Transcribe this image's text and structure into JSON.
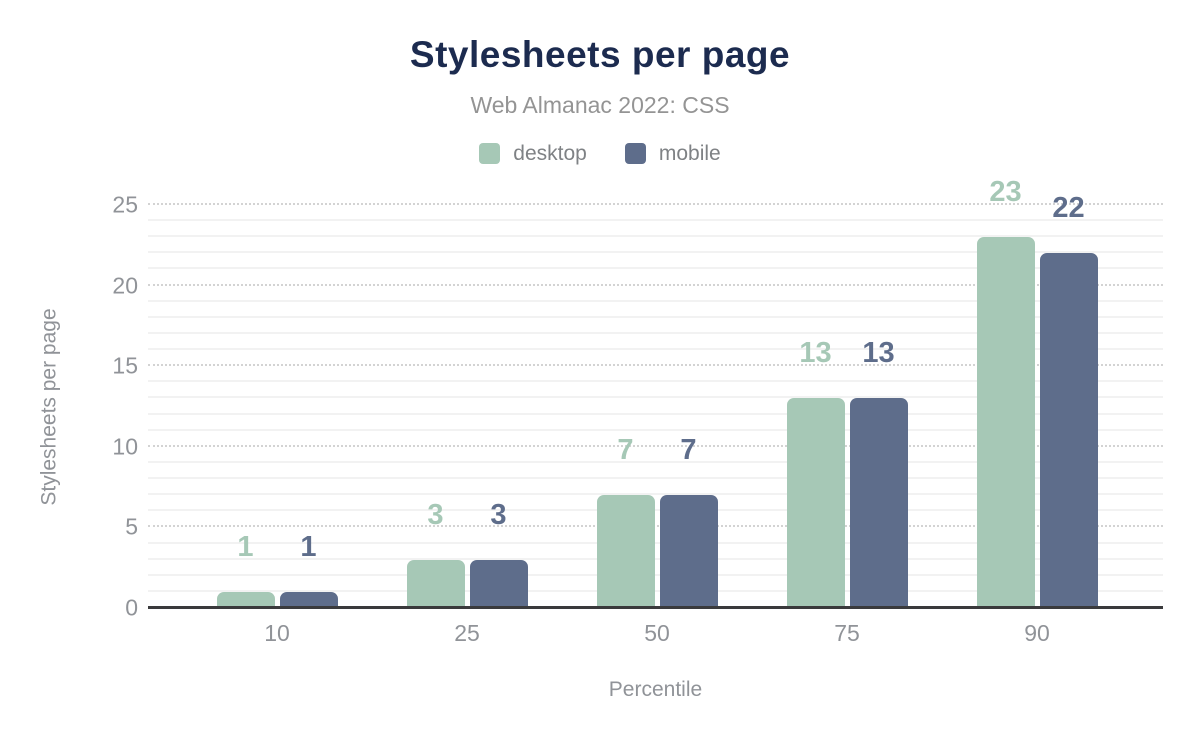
{
  "header": {
    "title": "Stylesheets per page",
    "subtitle": "Web Almanac 2022: CSS"
  },
  "colors": {
    "title": "#1c2b4f",
    "subtitle_text": "#949494",
    "axis_text": "#909398",
    "desktop": "#a6c8b6",
    "mobile": "#5e6d8b",
    "axis_line": "#3a3a3c",
    "grid_major": "#d3d3d3",
    "grid_minor": "#f2f2f2",
    "background": "#ffffff"
  },
  "chart_data": {
    "type": "bar",
    "title": "Stylesheets per page",
    "subtitle": "Web Almanac 2022: CSS",
    "categories": [
      "10",
      "25",
      "50",
      "75",
      "90"
    ],
    "series": [
      {
        "name": "desktop",
        "color": "#a6c8b6",
        "values": [
          1,
          3,
          7,
          13,
          23
        ]
      },
      {
        "name": "mobile",
        "color": "#5e6d8b",
        "values": [
          1,
          3,
          7,
          13,
          22
        ]
      }
    ],
    "xlabel": "Percentile",
    "ylabel": "Stylesheets per page",
    "ylim": [
      0,
      25
    ],
    "yticks": [
      0,
      5,
      10,
      15,
      20,
      25
    ],
    "grid": {
      "major_step": 5,
      "major_style": "dotted",
      "minor_step": 1,
      "minor_style": "solid"
    },
    "legend_position": "top",
    "value_labels": "above-bars"
  }
}
